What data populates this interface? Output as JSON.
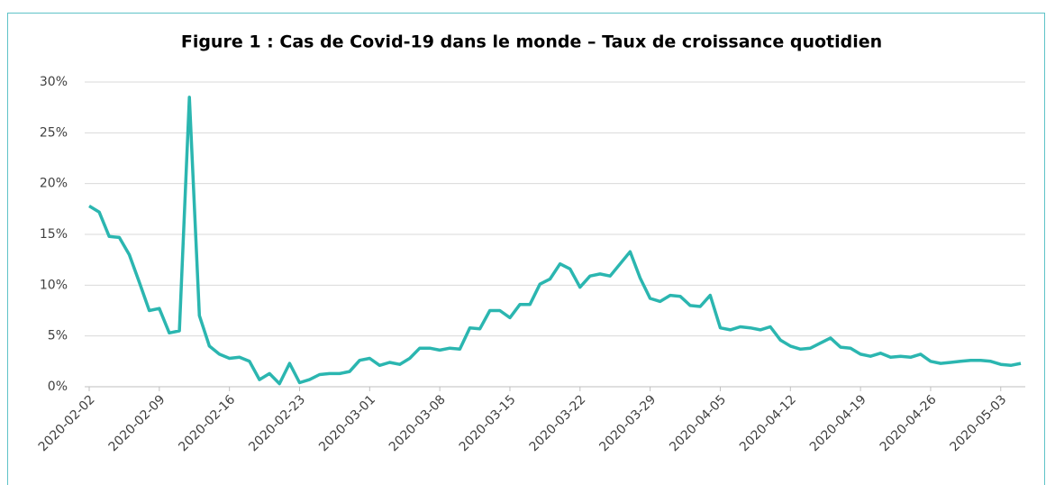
{
  "chart_data": {
    "type": "line",
    "title": "Figure 1 : Cas de Covid-19 dans le monde – Taux de croissance quotidien",
    "x": [
      "2020-02-02",
      "2020-02-03",
      "2020-02-04",
      "2020-02-05",
      "2020-02-06",
      "2020-02-07",
      "2020-02-08",
      "2020-02-09",
      "2020-02-10",
      "2020-02-11",
      "2020-02-12",
      "2020-02-13",
      "2020-02-14",
      "2020-02-15",
      "2020-02-16",
      "2020-02-17",
      "2020-02-18",
      "2020-02-19",
      "2020-02-20",
      "2020-02-21",
      "2020-02-22",
      "2020-02-23",
      "2020-02-24",
      "2020-02-25",
      "2020-02-26",
      "2020-02-27",
      "2020-02-28",
      "2020-02-29",
      "2020-03-01",
      "2020-03-02",
      "2020-03-03",
      "2020-03-04",
      "2020-03-05",
      "2020-03-06",
      "2020-03-07",
      "2020-03-08",
      "2020-03-09",
      "2020-03-10",
      "2020-03-11",
      "2020-03-12",
      "2020-03-13",
      "2020-03-14",
      "2020-03-15",
      "2020-03-16",
      "2020-03-17",
      "2020-03-18",
      "2020-03-19",
      "2020-03-20",
      "2020-03-21",
      "2020-03-22",
      "2020-03-23",
      "2020-03-24",
      "2020-03-25",
      "2020-03-26",
      "2020-03-27",
      "2020-03-28",
      "2020-03-29",
      "2020-03-30",
      "2020-03-31",
      "2020-04-01",
      "2020-04-02",
      "2020-04-03",
      "2020-04-04",
      "2020-04-05",
      "2020-04-06",
      "2020-04-07",
      "2020-04-08",
      "2020-04-09",
      "2020-04-10",
      "2020-04-11",
      "2020-04-12",
      "2020-04-13",
      "2020-04-14",
      "2020-04-15",
      "2020-04-16",
      "2020-04-17",
      "2020-04-18",
      "2020-04-19",
      "2020-04-20",
      "2020-04-21",
      "2020-04-22",
      "2020-04-23",
      "2020-04-24",
      "2020-04-25",
      "2020-04-26",
      "2020-04-27",
      "2020-04-28",
      "2020-04-29",
      "2020-04-30",
      "2020-05-01",
      "2020-05-02",
      "2020-05-03",
      "2020-05-04",
      "2020-05-05"
    ],
    "values": [
      17.8,
      17.2,
      14.8,
      14.7,
      13.0,
      10.3,
      7.5,
      7.7,
      5.3,
      5.5,
      28.5,
      7.0,
      4.0,
      3.2,
      2.8,
      2.9,
      2.5,
      0.7,
      1.3,
      0.3,
      2.3,
      0.4,
      0.7,
      1.2,
      1.3,
      1.3,
      1.5,
      2.6,
      2.8,
      2.1,
      2.4,
      2.2,
      2.8,
      3.8,
      3.8,
      3.6,
      3.8,
      3.7,
      5.8,
      5.7,
      7.5,
      7.5,
      6.8,
      8.1,
      8.1,
      10.1,
      10.6,
      12.1,
      11.6,
      9.8,
      10.9,
      11.1,
      10.9,
      12.1,
      13.3,
      10.7,
      8.7,
      8.4,
      9.0,
      8.9,
      8.0,
      7.9,
      9.0,
      5.8,
      5.6,
      5.9,
      5.8,
      5.6,
      5.9,
      4.6,
      4.0,
      3.7,
      3.8,
      4.3,
      4.8,
      3.9,
      3.8,
      3.2,
      3.0,
      3.3,
      2.9,
      3.0,
      2.9,
      3.2,
      2.5,
      2.3,
      2.4,
      2.5,
      2.6,
      2.6,
      2.5,
      2.2,
      2.1,
      2.3
    ],
    "color": "#2bb6b0",
    "xlim": [
      "2020-02-02",
      "2020-05-05"
    ],
    "xticks": [
      "2020-02-02",
      "2020-02-09",
      "2020-02-16",
      "2020-02-23",
      "2020-03-01",
      "2020-03-08",
      "2020-03-15",
      "2020-03-22",
      "2020-03-29",
      "2020-04-05",
      "2020-04-12",
      "2020-04-19",
      "2020-04-26",
      "2020-05-03"
    ],
    "ylim": [
      0,
      30
    ],
    "yticks": [
      {
        "value": 0,
        "label": "0%"
      },
      {
        "value": 5,
        "label": "5%"
      },
      {
        "value": 10,
        "label": "10%"
      },
      {
        "value": 15,
        "label": "15%"
      },
      {
        "value": 20,
        "label": "20%"
      },
      {
        "value": 25,
        "label": "25%"
      },
      {
        "value": 30,
        "label": "30%"
      }
    ],
    "grid": true
  }
}
